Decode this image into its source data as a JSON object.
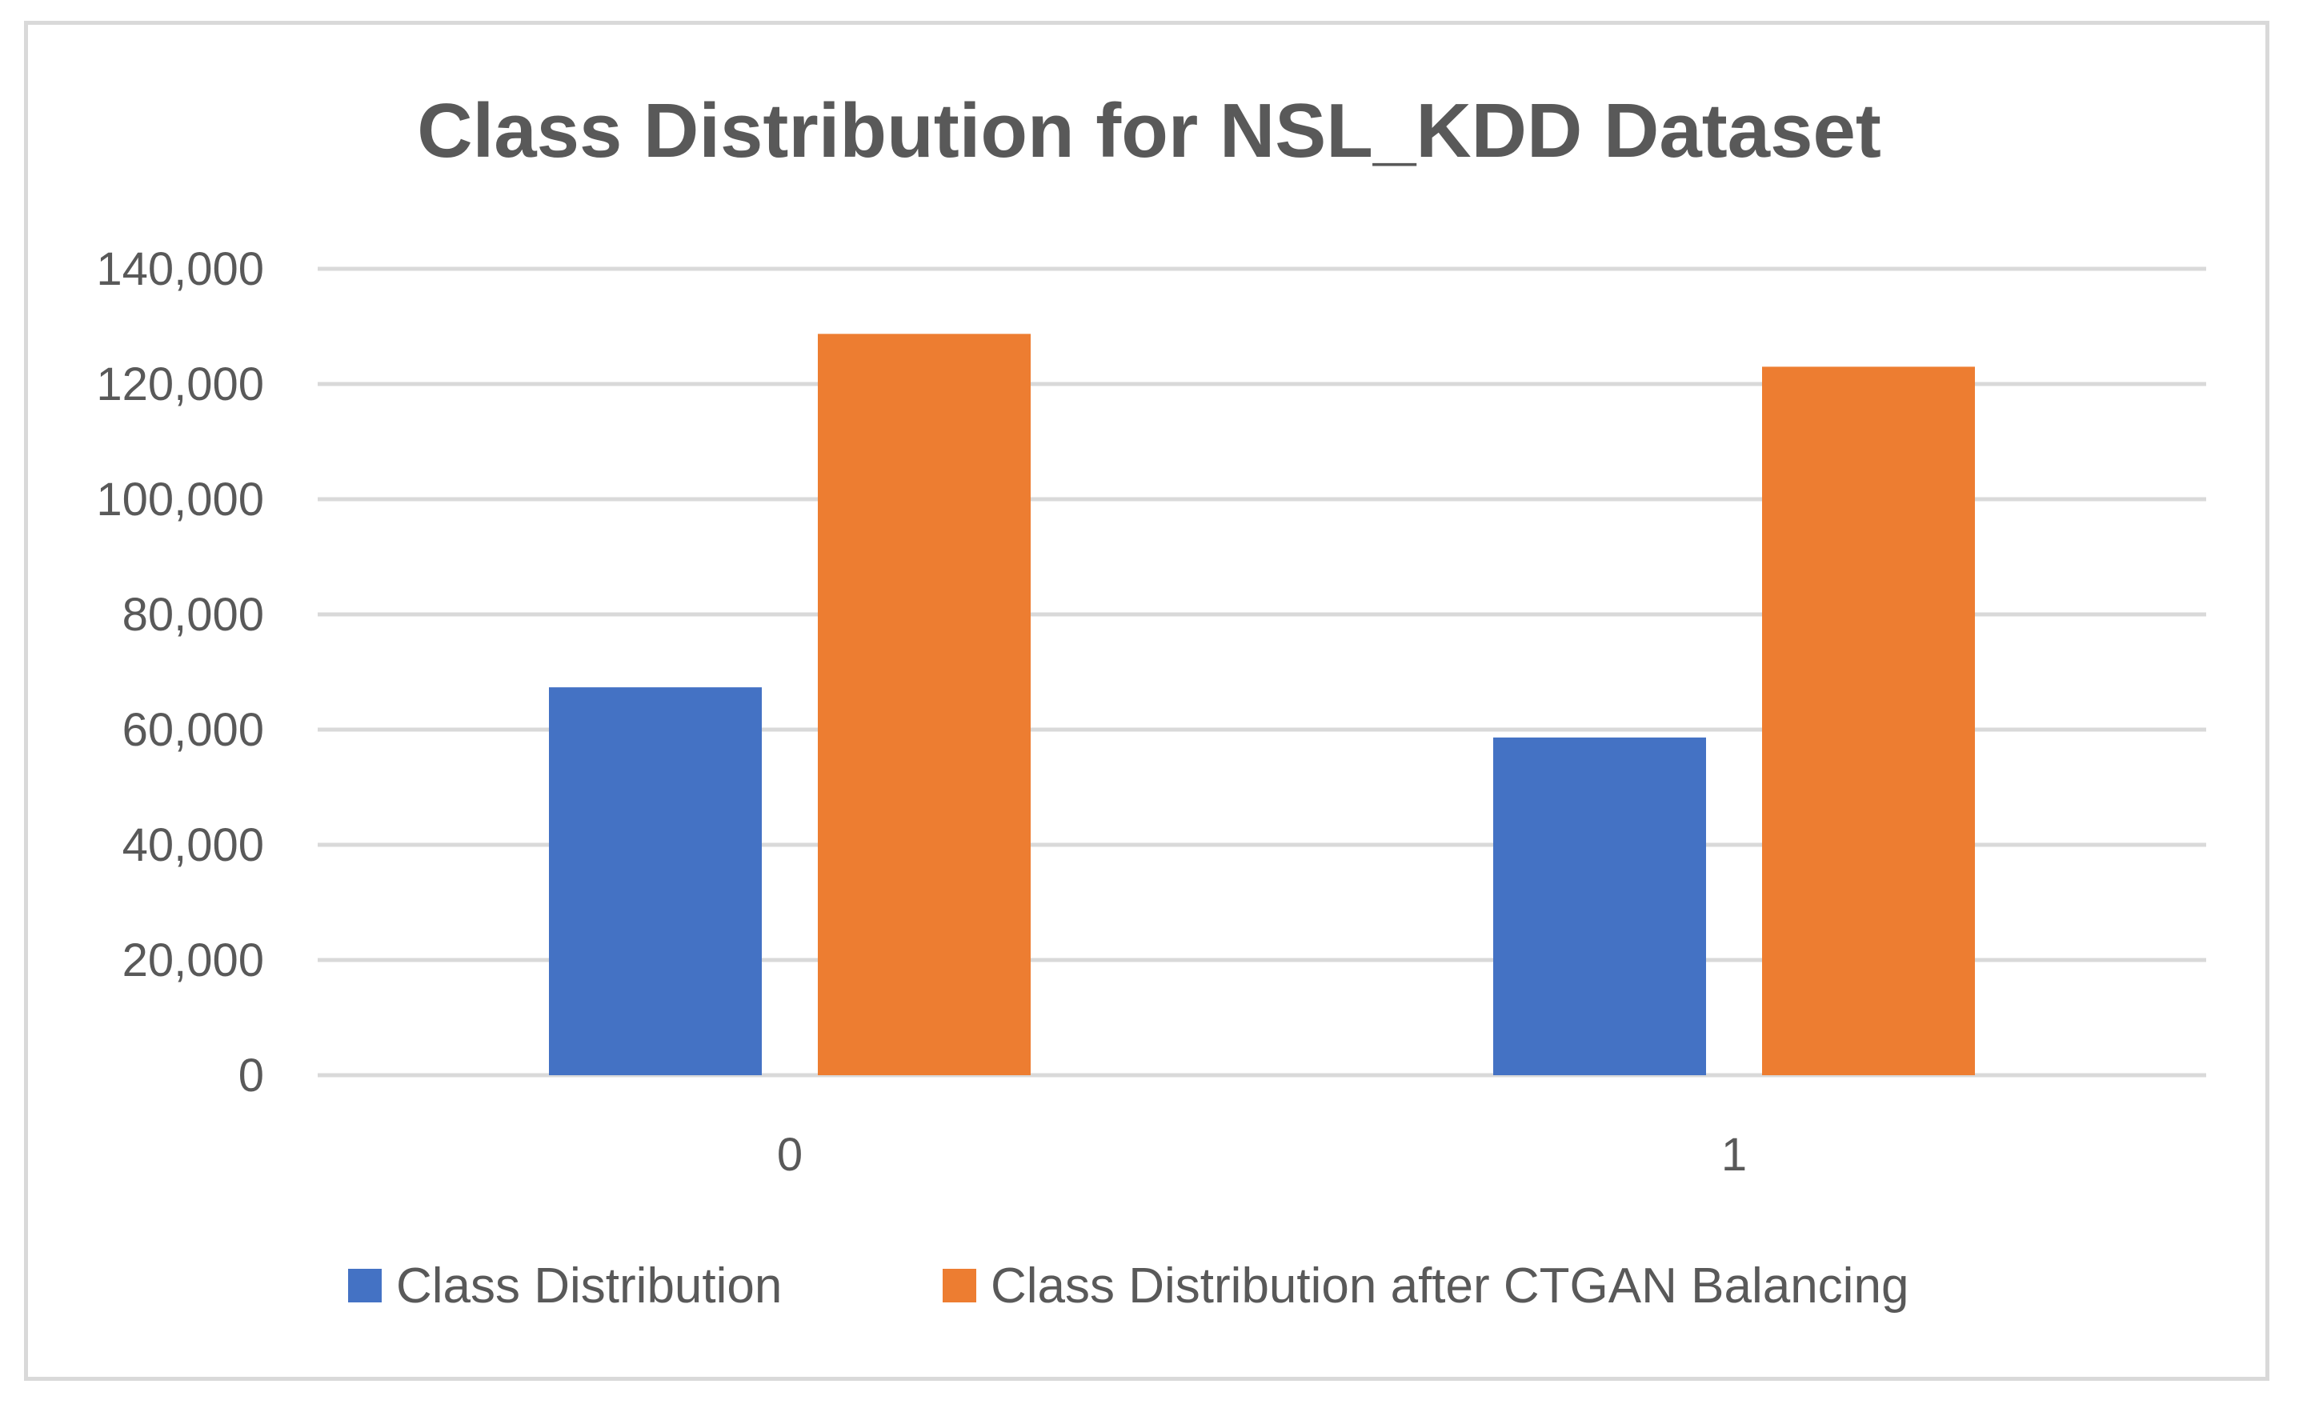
{
  "chart_data": {
    "type": "bar",
    "title": "Class Distribution for NSL_KDD Dataset",
    "xlabel": "",
    "ylabel": "",
    "categories": [
      "0",
      "1"
    ],
    "series": [
      {
        "name": "Class Distribution",
        "color": "#4472c4",
        "values": [
          67343,
          58630
        ]
      },
      {
        "name": "Class Distribution after CTGAN Balancing",
        "color": "#ed7d31",
        "values": [
          128700,
          123000
        ]
      }
    ],
    "ylim": [
      0,
      140000
    ],
    "yticks": [
      0,
      20000,
      40000,
      60000,
      80000,
      100000,
      120000,
      140000
    ],
    "ytick_labels": [
      "0",
      "20,000",
      "40,000",
      "60,000",
      "80,000",
      "100,000",
      "120,000",
      "140,000"
    ],
    "grid": true,
    "legend_position": "bottom"
  }
}
